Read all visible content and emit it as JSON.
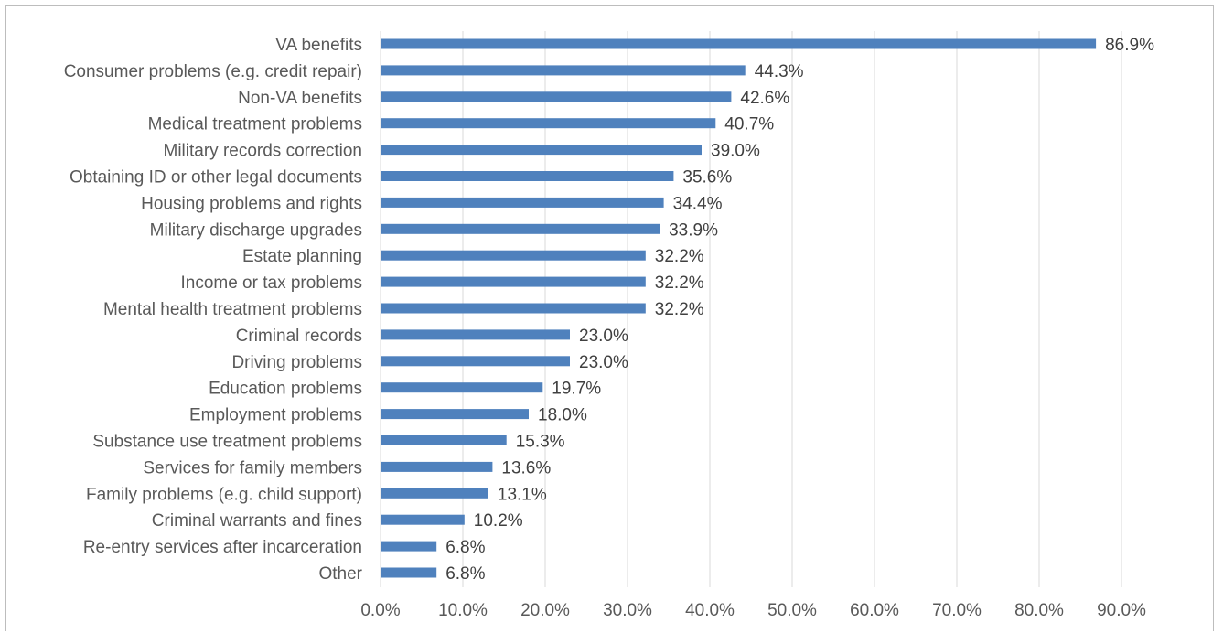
{
  "chart_data": {
    "type": "bar",
    "orientation": "horizontal",
    "categories": [
      "VA benefits",
      "Consumer problems (e.g. credit repair)",
      "Non-VA benefits",
      "Medical treatment problems",
      "Military records correction",
      "Obtaining ID or other legal documents",
      "Housing problems and rights",
      "Military discharge upgrades",
      "Estate planning",
      "Income or tax problems",
      "Mental health treatment problems",
      "Criminal records",
      "Driving problems",
      "Education problems",
      "Employment problems",
      "Substance use treatment problems",
      "Services for family members",
      "Family problems (e.g. child support)",
      "Criminal warrants and fines",
      "Re-entry services after incarceration",
      "Other"
    ],
    "values": [
      86.9,
      44.3,
      42.6,
      40.7,
      39.0,
      35.6,
      34.4,
      33.9,
      32.2,
      32.2,
      32.2,
      23.0,
      23.0,
      19.7,
      18.0,
      15.3,
      13.6,
      13.1,
      10.2,
      6.8,
      6.8
    ],
    "value_labels": [
      "86.9%",
      "44.3%",
      "42.6%",
      "40.7%",
      "39.0%",
      "35.6%",
      "34.4%",
      "33.9%",
      "32.2%",
      "32.2%",
      "32.2%",
      "23.0%",
      "23.0%",
      "19.7%",
      "18.0%",
      "15.3%",
      "13.6%",
      "13.1%",
      "10.2%",
      "6.8%",
      "6.8%"
    ],
    "x_ticks": [
      0,
      10,
      20,
      30,
      40,
      50,
      60,
      70,
      80,
      90
    ],
    "x_tick_labels": [
      "0.0%",
      "10.0%",
      "20.0%",
      "30.0%",
      "40.0%",
      "50.0%",
      "60.0%",
      "70.0%",
      "80.0%",
      "90.0%"
    ],
    "xlim": [
      0,
      90
    ],
    "title": "",
    "xlabel": "",
    "ylabel": "",
    "grid": "vertical",
    "legend": "none",
    "bar_color": "#4f81bd"
  }
}
